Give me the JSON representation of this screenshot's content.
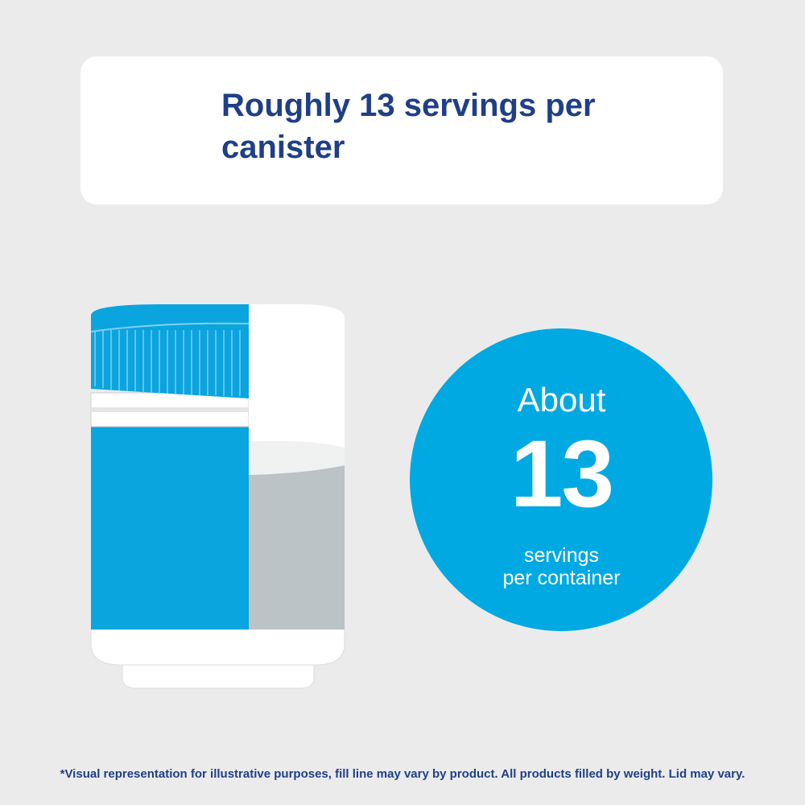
{
  "header": {
    "title": "Roughly 13 servings per canister"
  },
  "badge": {
    "line1": "About",
    "number": "13",
    "line2": "servings",
    "line3": "per container"
  },
  "footnote": "*Visual representation for illustrative purposes, fill line may vary by product. All products filled by weight. Lid may vary."
}
